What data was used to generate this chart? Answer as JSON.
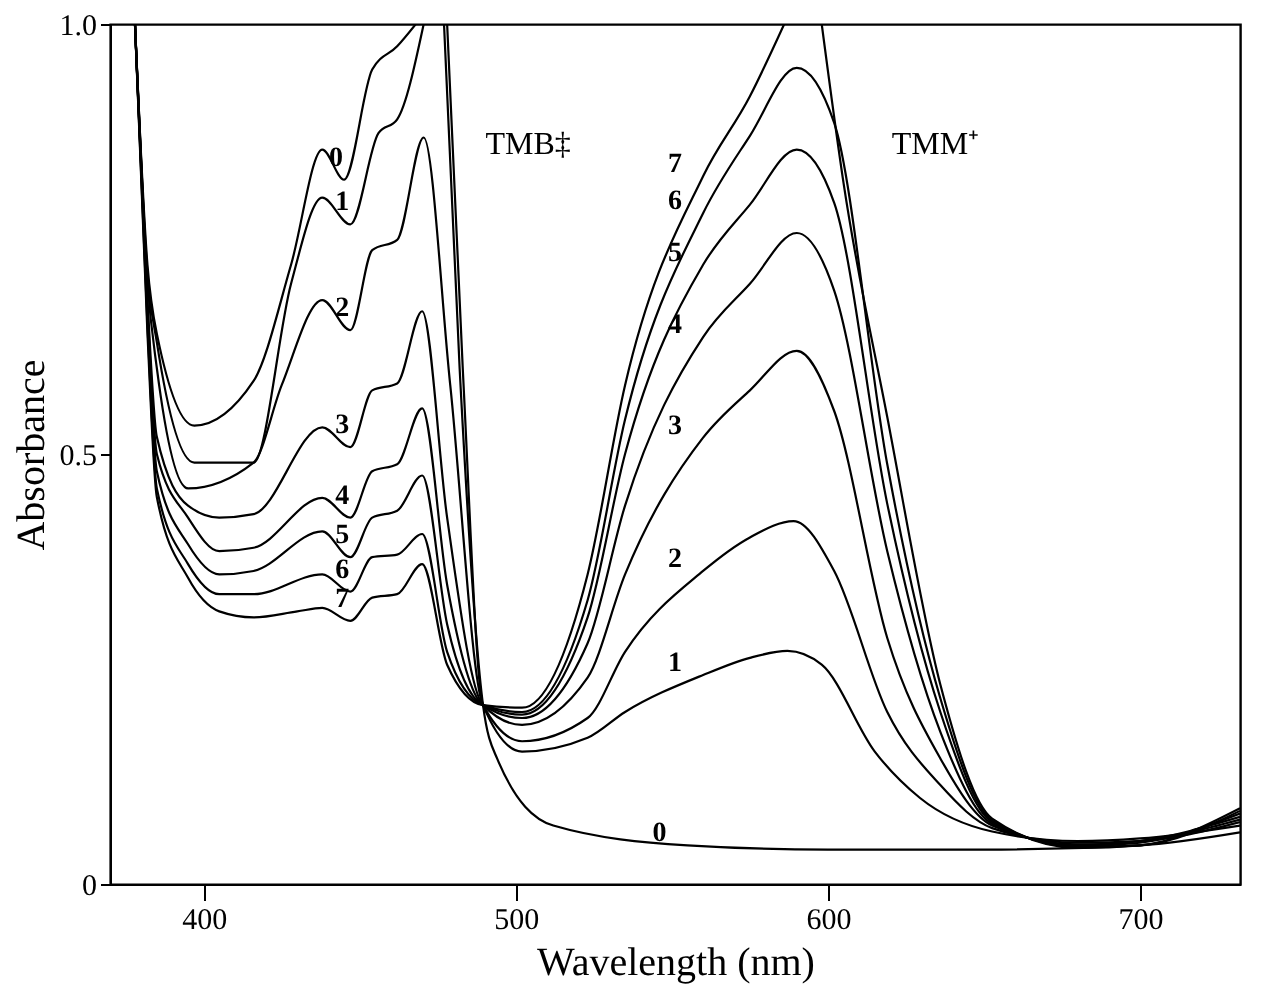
{
  "chart_data": {
    "type": "line",
    "xlabel": "Wavelength (nm)",
    "ylabel": "Absorbance",
    "xlim": [
      370,
      732
    ],
    "xticks": [
      400,
      500,
      600,
      700
    ],
    "ylim": [
      0,
      1
    ],
    "yticks": [
      0,
      0.5,
      {
        "value": 1,
        "label": "1.0"
      }
    ],
    "grid": false,
    "legend": false,
    "marker": "none",
    "line_style": "solid",
    "annotations": [
      "TMB‡",
      "TMM⁺"
    ],
    "series": [
      {
        "name": "0",
        "color": "#000000",
        "x": [
          378,
          382,
          385,
          397,
          416,
          428,
          438,
          445,
          454,
          462,
          468,
          472,
          477,
          482,
          489.5,
          494,
          512,
          555,
          600,
          650,
          700,
          732
        ],
        "values": [
          1.0,
          0.72,
          0.64,
          0.533,
          0.585,
          0.72,
          0.854,
          0.819,
          0.947,
          0.974,
          1.0,
          null,
          1.0,
          0.6,
          0.208,
          0.146,
          0.068,
          0.045,
          0.04,
          0.04,
          0.045,
          0.06
        ]
      },
      {
        "name": "1",
        "color": "#000000",
        "x": [
          378,
          382,
          385,
          397,
          416,
          428,
          438,
          447,
          456,
          462,
          470.5,
          474,
          478,
          483,
          489.5,
          502,
          523,
          535,
          560,
          575,
          587,
          598,
          615,
          629.5,
          652.6,
          680,
          700,
          732
        ],
        "values": [
          1.0,
          0.71,
          0.63,
          0.49,
          0.49,
          0.698,
          0.798,
          0.767,
          0.873,
          0.889,
          1.0,
          null,
          1.0,
          0.6,
          0.208,
          0.154,
          0.17,
          0.2,
          0.243,
          0.263,
          0.271,
          0.255,
          0.154,
          0.1,
          0.061,
          0.05,
          0.053,
          0.068
        ]
      },
      {
        "name": "2",
        "color": "#000000",
        "x": [
          378,
          382,
          385,
          395,
          416,
          425,
          438,
          447,
          454,
          462,
          470.5,
          479,
          489.5,
          502,
          523,
          535,
          560,
          575,
          589,
          602,
          619,
          636,
          652.6,
          680,
          700,
          732
        ],
        "values": [
          1.0,
          0.7,
          0.6,
          0.46,
          0.49,
          0.58,
          0.679,
          0.644,
          0.737,
          0.749,
          0.868,
          0.58,
          0.208,
          0.166,
          0.193,
          0.27,
          0.364,
          0.403,
          0.422,
          0.364,
          0.2,
          0.115,
          0.065,
          0.048,
          0.05,
          0.072
        ]
      },
      {
        "name": "3",
        "color": "#000000",
        "x": [
          378,
          382,
          385,
          395,
          405,
          416,
          438,
          447,
          454,
          462,
          470,
          478,
          489.5,
          502,
          523,
          535,
          560,
          575,
          590,
          602,
          619,
          636,
          652.6,
          680,
          700,
          732
        ],
        "values": [
          1.0,
          0.68,
          0.52,
          0.44,
          0.426,
          0.43,
          0.531,
          0.508,
          0.574,
          0.582,
          0.666,
          0.426,
          0.208,
          0.185,
          0.24,
          0.36,
          0.519,
          0.574,
          0.62,
          0.55,
          0.286,
          0.146,
          0.068,
          0.046,
          0.05,
          0.075
        ]
      },
      {
        "name": "4",
        "color": "#000000",
        "x": [
          378,
          382,
          385,
          395,
          405,
          416,
          438,
          447,
          454,
          462,
          470,
          478,
          489.5,
          502,
          523,
          535,
          560,
          575,
          590,
          602,
          619,
          636,
          652.6,
          680,
          700,
          732
        ],
        "values": [
          1.0,
          0.67,
          0.5,
          0.426,
          0.387,
          0.391,
          0.449,
          0.426,
          0.48,
          0.488,
          0.553,
          0.348,
          0.208,
          0.193,
          0.28,
          0.44,
          0.636,
          0.698,
          0.757,
          0.69,
          0.387,
          0.177,
          0.07,
          0.045,
          0.05,
          0.078
        ]
      },
      {
        "name": "5",
        "color": "#000000",
        "x": [
          378,
          382,
          385,
          395,
          405,
          416,
          438,
          447,
          454,
          462,
          470,
          478,
          489.5,
          502,
          523,
          535,
          560,
          575,
          590,
          602,
          619,
          636,
          652.6,
          680,
          700,
          732
        ],
        "values": [
          1.0,
          0.66,
          0.48,
          0.395,
          0.36,
          0.364,
          0.41,
          0.38,
          0.426,
          0.434,
          0.475,
          0.302,
          0.208,
          0.197,
          0.31,
          0.5,
          0.72,
          0.79,
          0.854,
          0.792,
          0.442,
          0.2,
          0.072,
          0.044,
          0.048,
          0.082
        ]
      },
      {
        "name": "6",
        "color": "#000000",
        "x": [
          378,
          382,
          385,
          395,
          405,
          416,
          438,
          447,
          454,
          462,
          470,
          478,
          489.5,
          502,
          523,
          535,
          560,
          575,
          590,
          602,
          619,
          636,
          652.6,
          680,
          700,
          732
        ],
        "values": [
          1.0,
          0.65,
          0.46,
          0.372,
          0.337,
          0.337,
          0.36,
          0.34,
          0.38,
          0.383,
          0.407,
          0.27,
          0.208,
          0.2,
          0.33,
          0.54,
          0.78,
          0.87,
          0.949,
          0.885,
          0.488,
          0.216,
          0.074,
          0.043,
          0.045,
          0.085
        ]
      },
      {
        "name": "7",
        "color": "#000000",
        "x": [
          378,
          382,
          385,
          395,
          405,
          416,
          430,
          438,
          447,
          454,
          462,
          470,
          478,
          489.5,
          502,
          523,
          535,
          560,
          575,
          586,
          592,
          598,
          605,
          619,
          636,
          652.6,
          680,
          700,
          732
        ],
        "values": [
          1.0,
          0.64,
          0.45,
          0.356,
          0.317,
          0.31,
          0.317,
          0.321,
          0.306,
          0.333,
          0.337,
          0.372,
          0.255,
          0.208,
          0.205,
          0.36,
          0.58,
          0.823,
          0.916,
          1.0,
          null,
          1.0,
          0.815,
          0.543,
          0.232,
          0.076,
          0.042,
          0.045,
          0.088
        ]
      }
    ]
  }
}
